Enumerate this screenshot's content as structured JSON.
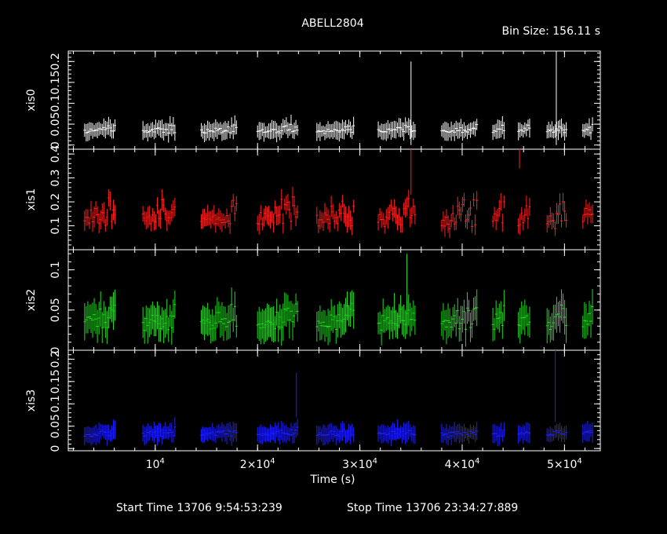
{
  "header": {
    "title": "ABELL2804",
    "bin_size": "Bin Size: 156.11 s"
  },
  "footer": {
    "start_time": "Start Time 13706  9:54:53:239",
    "stop_time": "Stop Time 13706 23:34:27:889"
  },
  "chart_data": {
    "type": "scatter",
    "xlabel": "Time (s)",
    "xlim": [
      1500,
      53500
    ],
    "x_ticks": [
      {
        "value": 10000,
        "label": "10^4"
      },
      {
        "value": 20000,
        "label": "2×10^4"
      },
      {
        "value": 30000,
        "label": "3×10^4"
      },
      {
        "value": 40000,
        "label": "4×10^4"
      },
      {
        "value": 50000,
        "label": "5×10^4"
      }
    ],
    "segments": [
      [
        3100,
        6200
      ],
      [
        8800,
        12000
      ],
      [
        14500,
        18000
      ],
      [
        20000,
        24000
      ],
      [
        25800,
        29500
      ],
      [
        31800,
        35500
      ],
      [
        38000,
        41500
      ],
      [
        43000,
        44200
      ],
      [
        45500,
        46600
      ],
      [
        48300,
        50200
      ],
      [
        51800,
        52800
      ]
    ],
    "panels": [
      {
        "name": "xis0",
        "color": "#ffffff",
        "ylim": [
          -0.01,
          0.225
        ],
        "yticks": [
          0,
          0.05,
          0.1,
          0.15,
          0.2
        ],
        "ytick_labels": [
          "0",
          "0.05",
          "0.1",
          "0.15",
          "0.2"
        ],
        "base": 0.03,
        "amp": 0.012,
        "err": 0.018,
        "seed": 11,
        "spikes": [
          {
            "x": 35000,
            "y": 0.1,
            "err": 0.1
          },
          {
            "x": 49200,
            "y": 0.12,
            "err": 0.12
          }
        ]
      },
      {
        "name": "xis1",
        "color": "#ff2020",
        "ylim": [
          0.0,
          0.42
        ],
        "yticks": [
          0.1,
          0.2,
          0.3,
          0.4
        ],
        "ytick_labels": [
          "0.1",
          "0.2",
          "0.3",
          "0.4"
        ],
        "base": 0.1,
        "amp": 0.09,
        "err": 0.035,
        "seed": 23,
        "spikes": [
          {
            "x": 35000,
            "y": 0.33,
            "err": 0.1
          },
          {
            "x": 45600,
            "y": 0.38,
            "err": 0.04
          }
        ]
      },
      {
        "name": "xis2",
        "color": "#20dd20",
        "ylim": [
          0.0,
          0.125
        ],
        "yticks": [
          0,
          0.05,
          0.1
        ],
        "ytick_labels": [
          "0",
          "0.05",
          "0.1"
        ],
        "base": 0.028,
        "amp": 0.02,
        "err": 0.018,
        "seed": 37,
        "spikes": [
          {
            "x": 34600,
            "y": 0.07,
            "err": 0.05
          }
        ]
      },
      {
        "name": "xis3",
        "color": "#2020ff",
        "ylim": [
          -0.005,
          0.22
        ],
        "yticks": [
          0,
          0.05,
          0.1,
          0.15,
          0.2
        ],
        "ytick_labels": [
          "0",
          "0.05",
          "0.1",
          "0.15",
          "0.2"
        ],
        "base": 0.028,
        "amp": 0.012,
        "err": 0.018,
        "seed": 53,
        "spikes": [
          {
            "x": 23800,
            "y": 0.12,
            "err": 0.05
          },
          {
            "x": 49100,
            "y": 0.14,
            "err": 0.08
          }
        ]
      }
    ]
  }
}
